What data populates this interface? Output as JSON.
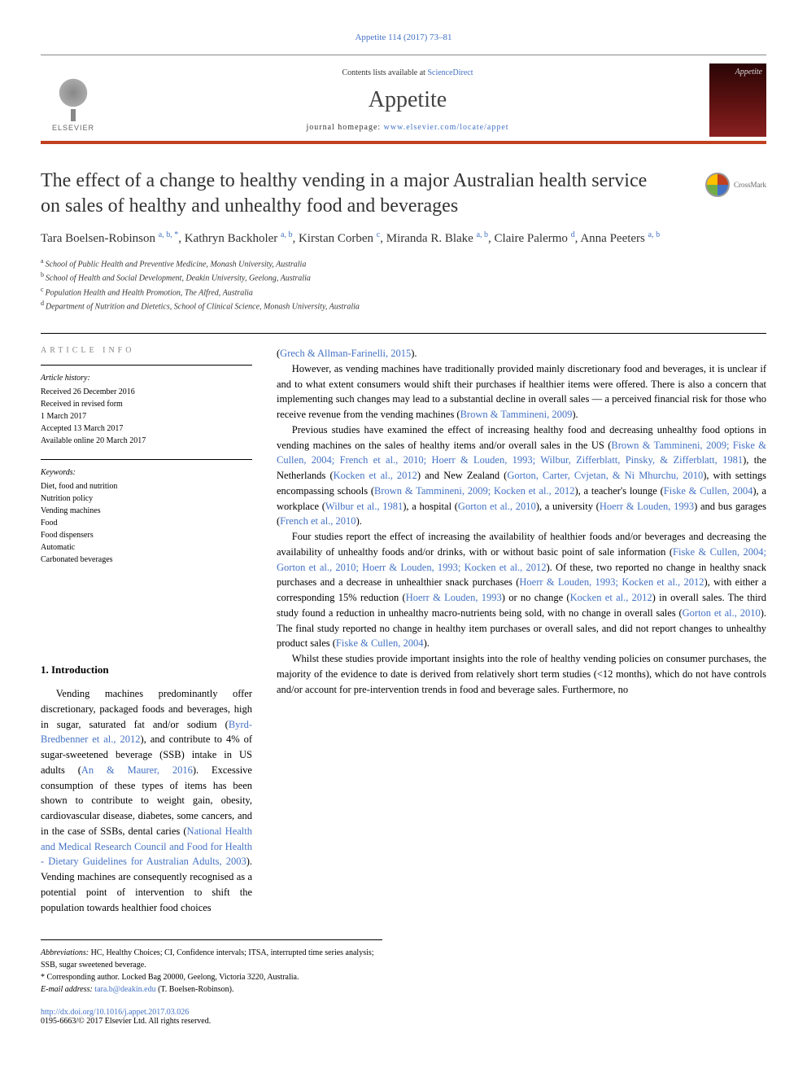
{
  "citation": "Appetite 114 (2017) 73–81",
  "header": {
    "contents_prefix": "Contents lists available at ",
    "contents_link": "ScienceDirect",
    "journal_title": "Appetite",
    "homepage_prefix": "journal homepage: ",
    "homepage_link": "www.elsevier.com/locate/appet",
    "publisher": "ELSEVIER",
    "cover_text": "Appetite"
  },
  "crossmark": "CrossMark",
  "article": {
    "title": "The effect of a change to healthy vending in a major Australian health service on sales of healthy and unhealthy food and beverages",
    "authors_html": "Tara Boelsen-Robinson <sup>a, b, *</sup>, Kathryn Backholer <sup>a, b</sup>, Kirstan Corben <sup>c</sup>, Miranda R. Blake <sup>a, b</sup>, Claire Palermo <sup>d</sup>, Anna Peeters <sup>a, b</sup>",
    "affiliations": [
      {
        "sup": "a",
        "text": "School of Public Health and Preventive Medicine, Monash University, Australia"
      },
      {
        "sup": "b",
        "text": "School of Health and Social Development, Deakin University, Geelong, Australia"
      },
      {
        "sup": "c",
        "text": "Population Health and Health Promotion, The Alfred, Australia"
      },
      {
        "sup": "d",
        "text": "Department of Nutrition and Dietetics, School of Clinical Science, Monash University, Australia"
      }
    ]
  },
  "article_info": {
    "label": "ARTICLE INFO",
    "history_label": "Article history:",
    "history": [
      "Received 26 December 2016",
      "Received in revised form",
      "1 March 2017",
      "Accepted 13 March 2017",
      "Available online 20 March 2017"
    ],
    "keywords_label": "Keywords:",
    "keywords": [
      "Diet, food and nutrition",
      "Nutrition policy",
      "Vending machines",
      "Food",
      "Food dispensers",
      "Automatic",
      "Carbonated beverages"
    ]
  },
  "intro_heading": "1. Introduction",
  "paragraphs": {
    "p1_pre": "Vending machines predominantly offer discretionary, packaged foods and beverages, high in sugar, saturated fat and/or sodium (",
    "p1_ref1": "Byrd-Bredbenner et al., 2012",
    "p1_mid1": "), and contribute to 4% of sugar-sweetened beverage (SSB) intake in US adults (",
    "p1_ref2": "An & Maurer, 2016",
    "p1_mid2": "). Excessive consumption of these types of items has been shown to contribute to weight gain, obesity, cardiovascular disease, diabetes, some cancers, and in the case of SSBs, dental caries (",
    "p1_ref3": "National Health and Medical Research Council and Food for Health - Dietary Guidelines for Australian Adults, 2003",
    "p1_post": "). Vending machines are consequently recognised as a potential point of intervention to shift the population towards healthier food choices",
    "p2_pre": "(",
    "p2_ref1": "Grech & Allman-Farinelli, 2015",
    "p2_post": ").",
    "p3_pre": "However, as vending machines have traditionally provided mainly discretionary food and beverages, it is unclear if and to what extent consumers would shift their purchases if healthier items were offered. There is also a concern that implementing such changes may lead to a substantial decline in overall sales — a perceived financial risk for those who receive revenue from the vending machines (",
    "p3_ref1": "Brown & Tammineni, 2009",
    "p3_post": ").",
    "p4_pre": "Previous studies have examined the effect of increasing healthy food and decreasing unhealthy food options in vending machines on the sales of healthy items and/or overall sales in the US (",
    "p4_ref1": "Brown & Tammineni, 2009; Fiske & Cullen, 2004; French et al., 2010; Hoerr & Louden, 1993; Wilbur, Zifferblatt, Pinsky, & Zifferblatt, 1981",
    "p4_mid1": "), the Netherlands (",
    "p4_ref2": "Kocken et al., 2012",
    "p4_mid2": ") and New Zealand (",
    "p4_ref3": "Gorton, Carter, Cvjetan, & Ni Mhurchu, 2010",
    "p4_mid3": "), with settings encompassing schools (",
    "p4_ref4": "Brown & Tammineni, 2009; Kocken et al., 2012",
    "p4_mid4": "), a teacher's lounge (",
    "p4_ref5": "Fiske & Cullen, 2004",
    "p4_mid5": "), a workplace (",
    "p4_ref6": "Wilbur et al., 1981",
    "p4_mid6": "), a hospital (",
    "p4_ref7": "Gorton et al., 2010",
    "p4_mid7": "), a university (",
    "p4_ref8": "Hoerr & Louden, 1993",
    "p4_mid8": ") and bus garages (",
    "p4_ref9": "French et al., 2010",
    "p4_post": ").",
    "p5_pre": "Four studies report the effect of increasing the availability of healthier foods and/or beverages and decreasing the availability of unhealthy foods and/or drinks, with or without basic point of sale information (",
    "p5_ref1": "Fiske & Cullen, 2004; Gorton et al., 2010; Hoerr & Louden, 1993; Kocken et al., 2012",
    "p5_mid1": "). Of these, two reported no change in healthy snack purchases and a decrease in unhealthier snack purchases (",
    "p5_ref2": "Hoerr & Louden, 1993; Kocken et al., 2012",
    "p5_mid2": "), with either a corresponding 15% reduction (",
    "p5_ref3": "Hoerr & Louden, 1993",
    "p5_mid3": ") or no change (",
    "p5_ref4": "Kocken et al., 2012",
    "p5_mid4": ") in overall sales. The third study found a reduction in unhealthy macro-nutrients being sold, with no change in overall sales (",
    "p5_ref5": "Gorton et al., 2010",
    "p5_mid5": "). The final study reported no change in healthy item purchases or overall sales, and did not report changes to unhealthy product sales (",
    "p5_ref6": "Fiske & Cullen, 2004",
    "p5_post": ").",
    "p6": "Whilst these studies provide important insights into the role of healthy vending policies on consumer purchases, the majority of the evidence to date is derived from relatively short term studies (<12 months), which do not have controls and/or account for pre-intervention trends in food and beverage sales. Furthermore, no"
  },
  "footnotes": {
    "abbrev_label": "Abbreviations:",
    "abbrev_text": " HC, Healthy Choices; CI, Confidence intervals; ITSA, interrupted time series analysis; SSB, sugar sweetened beverage.",
    "corr_label": "* Corresponding author.",
    "corr_text": " Locked Bag 20000, Geelong, Victoria 3220, Australia.",
    "email_label": "E-mail address:",
    "email": " tara.b@deakin.edu",
    "email_suffix": " (T. Boelsen-Robinson)."
  },
  "doi": {
    "url": "http://dx.doi.org/10.1016/j.appet.2017.03.026",
    "copyright": "0195-6663/© 2017 Elsevier Ltd. All rights reserved."
  },
  "colors": {
    "link": "#4472c4",
    "accent": "#c04020",
    "text": "#000000"
  }
}
